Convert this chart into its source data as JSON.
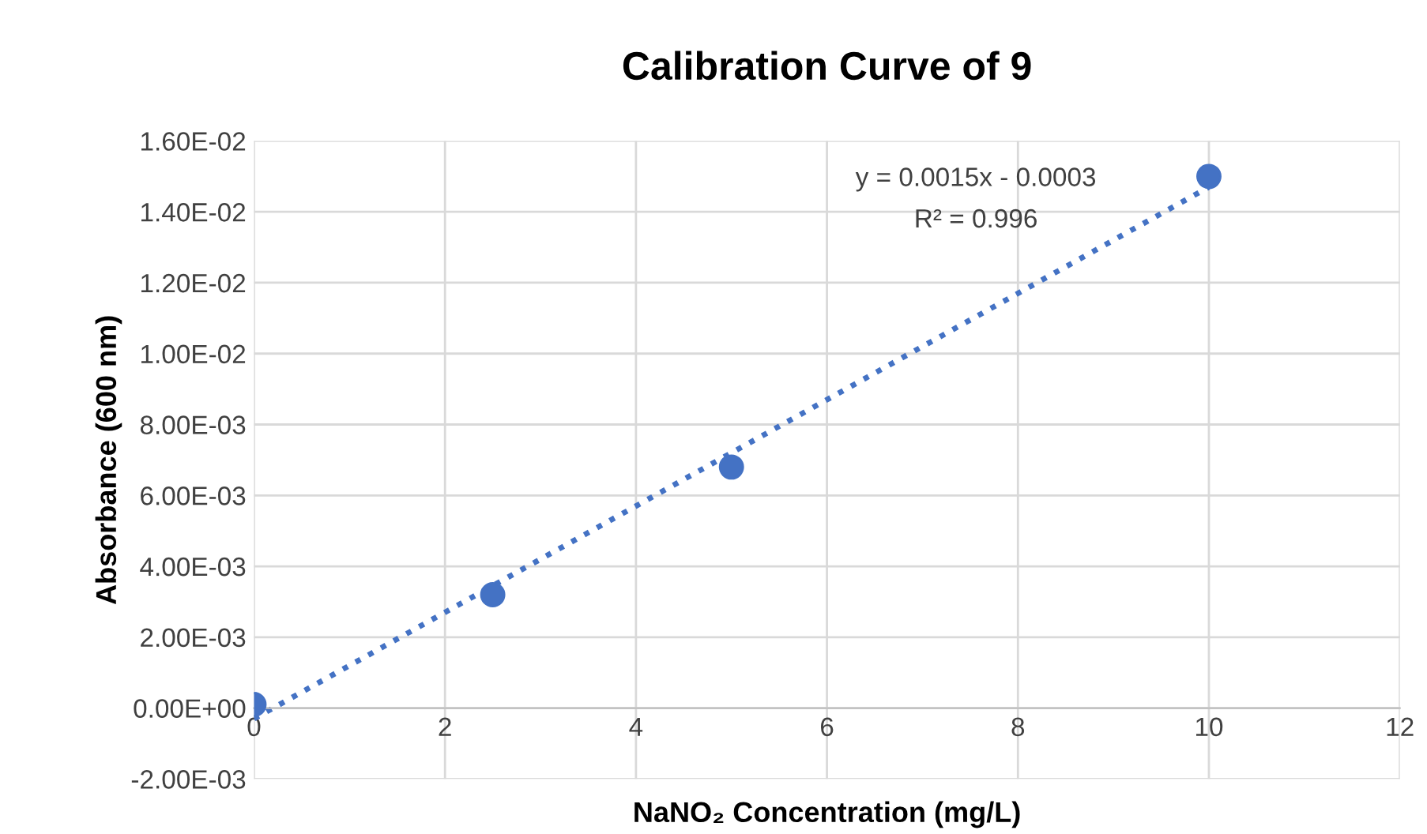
{
  "chart_data": {
    "type": "scatter",
    "title": "Calibration Curve of 9",
    "xlabel": "NaNO₂ Concentration (mg/L)",
    "ylabel": "Absorbance (600 nm)",
    "series": [
      {
        "color": "#4472c4",
        "marker": "circle",
        "x": [
          0,
          2.5,
          5,
          10
        ],
        "values": [
          0.0001,
          0.0032,
          0.0068,
          0.015
        ]
      },
      {
        "type": "line",
        "color": "#4472c4",
        "line_style": "dotted",
        "marker": "none",
        "x": [
          0,
          10
        ],
        "values": [
          -0.0003,
          0.0147
        ]
      }
    ],
    "annotations": [
      "y = 0.0015x - 0.0003",
      "R² = 0.996"
    ],
    "xlim": [
      0,
      12
    ],
    "xticks": [
      0,
      2,
      4,
      6,
      8,
      10,
      12
    ],
    "ylim": [
      -0.002,
      0.016
    ],
    "yticks": [
      {
        "value": -0.002,
        "label": "-2.00E-03"
      },
      {
        "value": 0,
        "label": "0.00E+00"
      },
      {
        "value": 0.002,
        "label": "2.00E-03"
      },
      {
        "value": 0.004,
        "label": "4.00E-03"
      },
      {
        "value": 0.006,
        "label": "6.00E-03"
      },
      {
        "value": 0.008,
        "label": "8.00E-03"
      },
      {
        "value": 0.01,
        "label": "1.00E-02"
      },
      {
        "value": 0.012,
        "label": "1.20E-02"
      },
      {
        "value": 0.014,
        "label": "1.40E-02"
      },
      {
        "value": 0.016,
        "label": "1.60E-02"
      }
    ],
    "grid": true,
    "legend": false
  }
}
